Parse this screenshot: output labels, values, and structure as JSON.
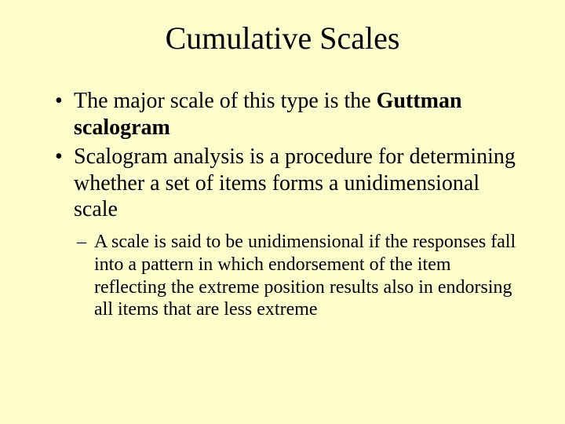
{
  "slide": {
    "background_color": "#ffffcc",
    "text_color": "#000000",
    "title": "Cumulative Scales",
    "title_fontsize": 40,
    "body_fontsize": 28,
    "sub_fontsize": 24,
    "font_family": "Times New Roman",
    "bullets": [
      {
        "pre": "The major scale of this type is the ",
        "bold": "Guttman scalogram",
        "post": ""
      },
      {
        "pre": "Scalogram analysis is a procedure for determining whether a set of items forms a unidimensional scale",
        "bold": "",
        "post": ""
      }
    ],
    "sub_bullets": [
      "A scale is said to be unidimensional if the responses fall into a pattern in which endorsement of the item reflecting the extreme position results also in endorsing all items that are less extreme"
    ]
  }
}
